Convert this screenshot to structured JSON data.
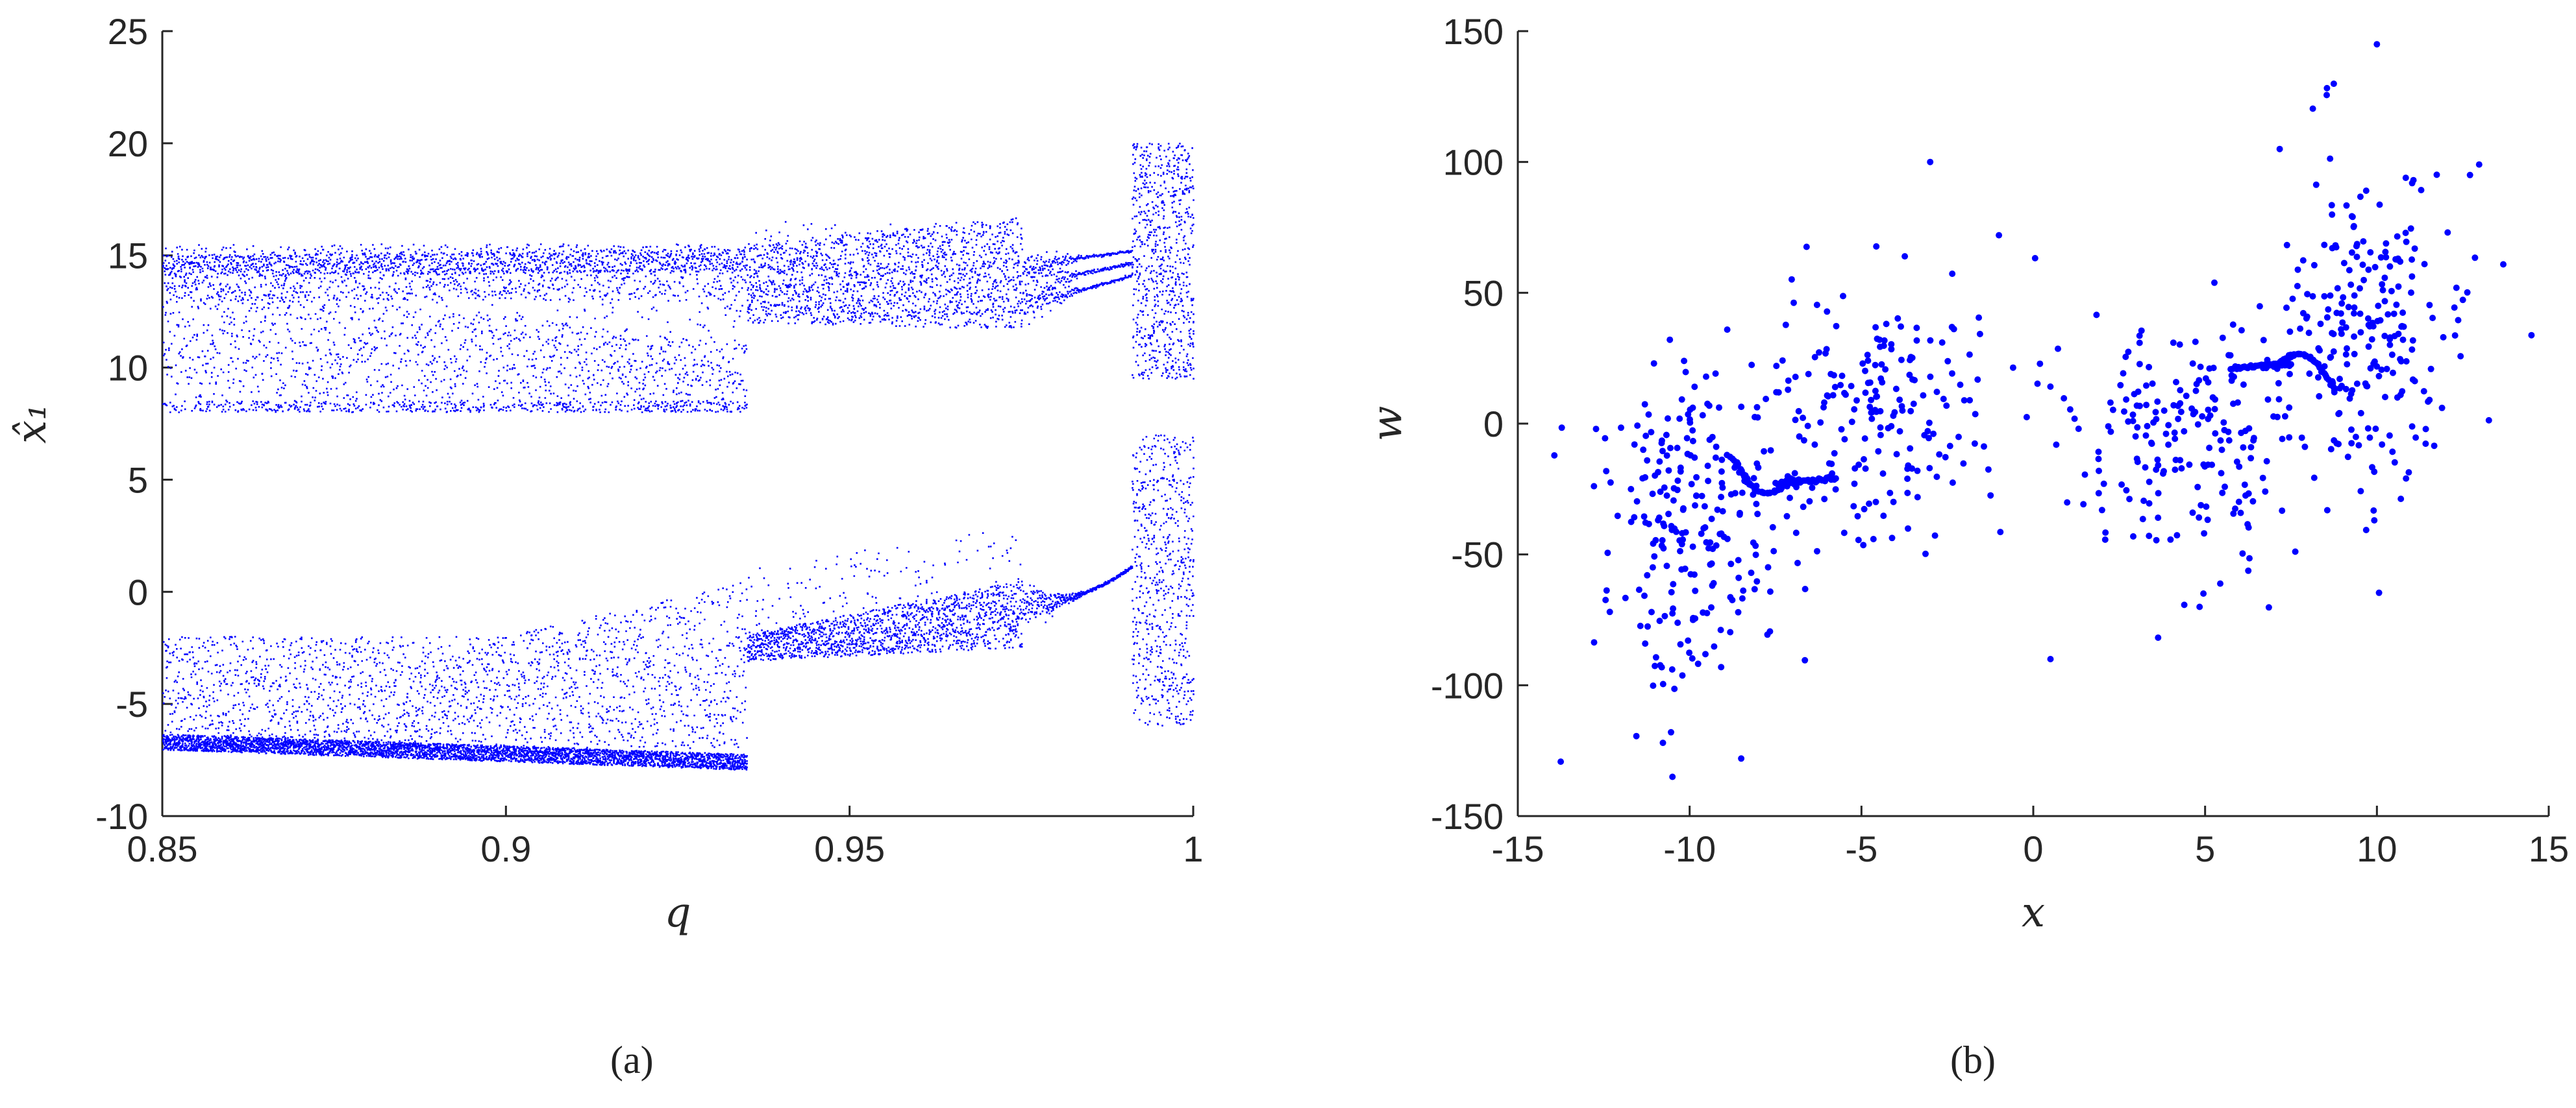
{
  "chart_data": [
    {
      "type": "scatter",
      "panel": "a",
      "caption": "(a)",
      "xlabel": "q",
      "ylabel": "x̂₁",
      "xlim": [
        0.85,
        1.0
      ],
      "ylim": [
        -10,
        25
      ],
      "x_ticks": [
        0.85,
        0.9,
        0.95,
        1.0
      ],
      "x_tick_labels": [
        "0.85",
        "0.9",
        "0.95",
        "1"
      ],
      "y_ticks": [
        -10,
        -5,
        0,
        5,
        10,
        15,
        20,
        25
      ],
      "y_tick_labels": [
        "-10",
        "-5",
        "0",
        "5",
        "10",
        "15",
        "20",
        "25"
      ],
      "grid": false,
      "marker_color": "#0000ff",
      "description_of_distribution": "bifurcation diagram: upper band 8-16 for q<0.935 rising to 12-16, period bands near q 0.975-0.99, chaos 9-20 after q 0.99; lower band near -7 for q<0.935, then -2 to 1 up to 0.99, then -6 to 7"
    },
    {
      "type": "scatter",
      "panel": "b",
      "caption": "(b)",
      "xlabel": "x",
      "ylabel": "w",
      "xlim": [
        -15,
        15
      ],
      "ylim": [
        -150,
        150
      ],
      "x_ticks": [
        -15,
        -10,
        -5,
        0,
        5,
        10,
        15
      ],
      "x_tick_labels": [
        "-15",
        "-10",
        "-5",
        "0",
        "5",
        "10",
        "15"
      ],
      "y_ticks": [
        -150,
        -100,
        -50,
        0,
        50,
        100,
        150
      ],
      "y_tick_labels": [
        "-150",
        "-100",
        "-50",
        "0",
        "50",
        "100",
        "150"
      ],
      "grid": false,
      "marker_color": "#0000ff",
      "description_of_distribution": "two symmetric lobes: left cloud x -13 to -1, w -135 to 100 with curved filament from (-8.5,-15) to (-7,-22); right cloud x 0 to 14, w -90 to 145 with filament near (7,-10) to (8.5,30)"
    }
  ]
}
